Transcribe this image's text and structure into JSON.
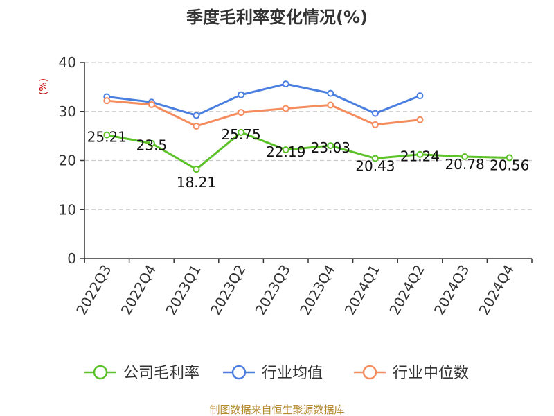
{
  "chart_data": {
    "type": "line",
    "title": "季度毛利率变化情况(%)",
    "ylabel": "(%)",
    "xlabel": "",
    "ylim": [
      0,
      40
    ],
    "yticks": [
      0,
      10,
      20,
      30,
      40
    ],
    "grid": true,
    "legend_position": "bottom",
    "categories": [
      "2022Q3",
      "2022Q4",
      "2023Q1",
      "2023Q2",
      "2023Q3",
      "2023Q4",
      "2024Q1",
      "2024Q2",
      "2024Q3",
      "2024Q4"
    ],
    "series": [
      {
        "name": "公司毛利率",
        "color": "#5cc22a",
        "values": [
          25.21,
          23.5,
          18.21,
          25.75,
          22.19,
          23.03,
          20.43,
          21.24,
          20.78,
          20.56
        ],
        "labels": [
          "25.21",
          "23.5",
          "18.21",
          "25.75",
          "22.19",
          "23.03",
          "20.43",
          "21.24",
          "20.78",
          "20.56"
        ]
      },
      {
        "name": "行业均值",
        "color": "#4a7fe0",
        "values": [
          33.0,
          31.9,
          29.2,
          33.4,
          35.6,
          33.7,
          29.6,
          33.2,
          null,
          null
        ]
      },
      {
        "name": "行业中位数",
        "color": "#f48c5e",
        "values": [
          32.2,
          31.4,
          27.0,
          29.8,
          30.6,
          31.3,
          27.3,
          28.3,
          null,
          null
        ]
      }
    ]
  },
  "footer": {
    "source": "制图数据来自恒生聚源数据库"
  },
  "colors": {
    "axis": "#333333",
    "grid": "#cccccc",
    "unit": "#cc0000",
    "source": "#b38a2f"
  }
}
